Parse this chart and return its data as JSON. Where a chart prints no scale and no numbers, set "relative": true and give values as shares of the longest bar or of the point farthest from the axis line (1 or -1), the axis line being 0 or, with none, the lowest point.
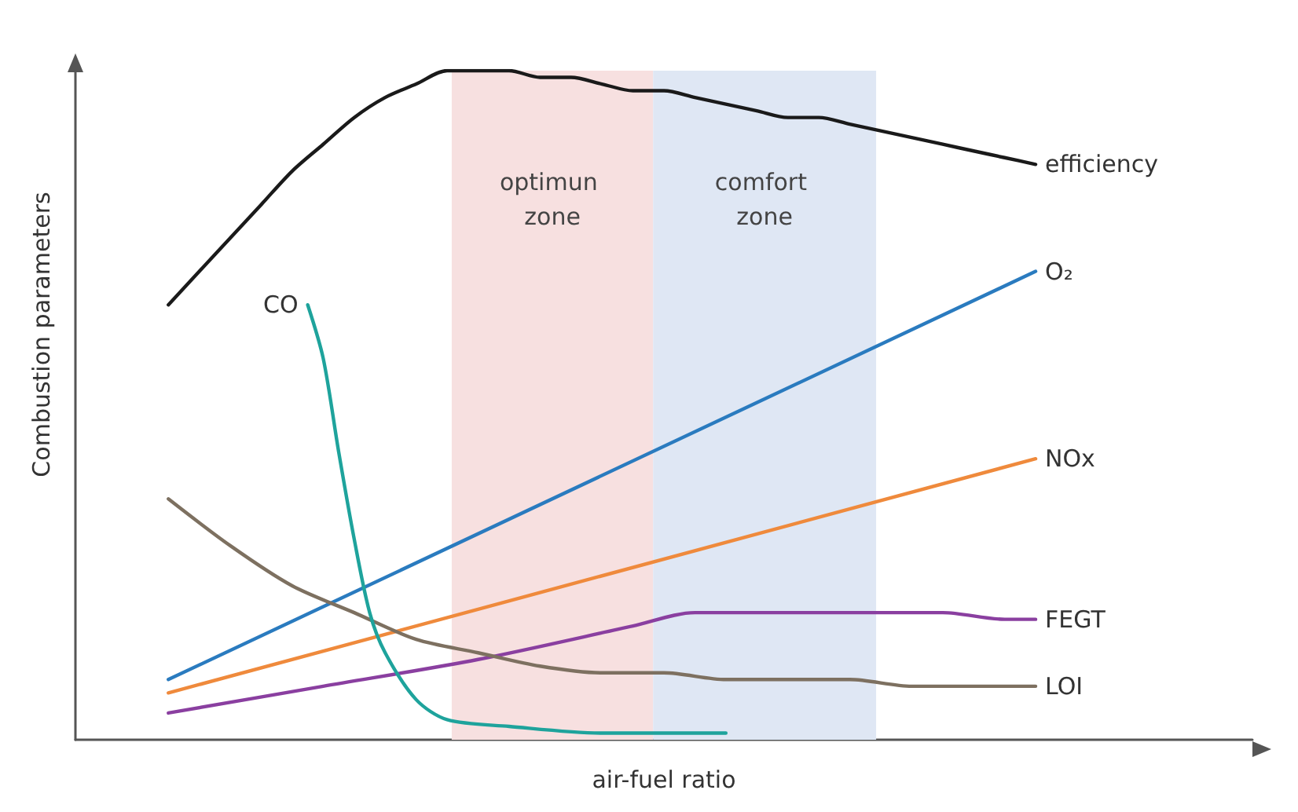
{
  "chart_data": {
    "type": "line",
    "relative": true,
    "xlabel": "air-fuel ratio",
    "ylabel": "Combustion parameters",
    "grid": false,
    "legend": false,
    "marker": "none",
    "line_style": "solid",
    "categories": [
      null,
      null,
      null,
      null,
      null,
      null,
      null,
      null,
      null,
      null,
      null,
      null,
      null,
      null,
      null,
      null,
      null,
      null,
      null,
      null,
      null,
      null,
      null,
      null,
      null,
      null,
      null,
      null,
      null,
      null,
      null,
      null,
      null,
      null,
      null,
      null,
      null,
      null,
      null,
      null,
      null,
      null,
      null,
      null,
      null,
      null,
      null,
      null,
      null,
      null,
      null,
      null,
      null,
      null,
      null,
      null,
      null,
      null,
      null,
      null,
      null,
      null,
      null,
      null,
      null,
      null,
      null,
      null,
      null,
      null,
      null,
      null,
      null,
      null,
      null,
      null,
      null
    ],
    "annotations": [
      "optimun zone",
      "comfort zone"
    ],
    "series": [
      {
        "name": "efficiency",
        "color": "#1a1a1a",
        "values": [
          null,
          null,
          null,
          null,
          null,
          null,
          0.65,
          null,
          0.7,
          null,
          0.75,
          null,
          0.8,
          null,
          0.85,
          null,
          0.89,
          null,
          0.93,
          null,
          0.96,
          null,
          0.98,
          null,
          1.0,
          null,
          1.0,
          null,
          1.0,
          null,
          0.99,
          null,
          0.99,
          null,
          0.98,
          null,
          0.97,
          null,
          0.97,
          null,
          0.96,
          null,
          0.95,
          null,
          0.94,
          null,
          0.93,
          null,
          0.93,
          null,
          0.92,
          null,
          0.91,
          null,
          0.9,
          null,
          0.89,
          null,
          0.88,
          null,
          0.87,
          null,
          0.86,
          null,
          null,
          null,
          null,
          null,
          null,
          null,
          null,
          null,
          null,
          null,
          null,
          null,
          null
        ]
      },
      {
        "name": "O₂",
        "color": "#2a7bbf",
        "values": [
          null,
          null,
          null,
          null,
          null,
          null,
          0.09,
          null,
          null,
          null,
          null,
          null,
          null,
          null,
          null,
          null,
          null,
          null,
          null,
          null,
          null,
          null,
          null,
          null,
          null,
          null,
          null,
          null,
          null,
          null,
          null,
          null,
          null,
          null,
          null,
          null,
          null,
          null,
          null,
          null,
          null,
          null,
          null,
          null,
          null,
          null,
          null,
          null,
          null,
          null,
          null,
          null,
          null,
          null,
          null,
          null,
          null,
          null,
          null,
          null,
          null,
          null,
          0.7,
          null,
          null,
          null,
          null,
          null,
          null,
          null,
          null,
          null,
          null,
          null,
          null,
          null,
          null
        ]
      },
      {
        "name": "NOx",
        "color": "#ef8a3c",
        "values": [
          null,
          null,
          null,
          null,
          null,
          null,
          0.07,
          null,
          null,
          null,
          null,
          null,
          null,
          null,
          null,
          null,
          null,
          null,
          null,
          null,
          null,
          null,
          null,
          null,
          null,
          null,
          null,
          null,
          null,
          null,
          null,
          null,
          null,
          null,
          null,
          null,
          null,
          null,
          null,
          null,
          null,
          null,
          null,
          null,
          null,
          null,
          null,
          null,
          null,
          null,
          null,
          null,
          null,
          null,
          null,
          null,
          null,
          null,
          null,
          null,
          null,
          null,
          0.42,
          null,
          null,
          null,
          null,
          null,
          null,
          null,
          null,
          null,
          null,
          null,
          null,
          null,
          null
        ]
      },
      {
        "name": "FEGT",
        "color": "#8a3fa0",
        "values": [
          null,
          null,
          null,
          null,
          null,
          null,
          0.04,
          null,
          null,
          null,
          null,
          null,
          null,
          null,
          null,
          null,
          0.08,
          null,
          null,
          null,
          null,
          null,
          null,
          null,
          null,
          null,
          0.12,
          null,
          null,
          null,
          null,
          null,
          null,
          null,
          null,
          null,
          0.17,
          null,
          null,
          null,
          0.19,
          null,
          null,
          null,
          0.19,
          null,
          null,
          null,
          0.19,
          null,
          null,
          null,
          0.19,
          null,
          null,
          null,
          0.19,
          null,
          null,
          null,
          0.18,
          null,
          0.18,
          null,
          null,
          null,
          null,
          null,
          null,
          null,
          null,
          null,
          null,
          null,
          null,
          null,
          null
        ]
      },
      {
        "name": "LOI",
        "color": "#7d7060",
        "values": [
          null,
          null,
          null,
          null,
          null,
          null,
          0.36,
          null,
          null,
          null,
          0.29,
          null,
          null,
          null,
          0.23,
          null,
          null,
          null,
          0.19,
          null,
          null,
          null,
          0.15,
          null,
          null,
          null,
          0.13,
          null,
          null,
          null,
          0.11,
          null,
          null,
          null,
          0.1,
          null,
          null,
          null,
          0.1,
          null,
          null,
          null,
          0.09,
          null,
          null,
          null,
          0.09,
          null,
          null,
          null,
          0.09,
          null,
          null,
          null,
          0.08,
          null,
          null,
          null,
          0.08,
          null,
          null,
          null,
          0.08,
          null,
          null,
          null,
          null,
          null,
          null,
          null,
          null,
          null,
          null,
          null,
          null,
          null,
          null
        ]
      },
      {
        "name": "CO",
        "color": "#1ea39c",
        "values": [
          null,
          null,
          null,
          null,
          null,
          null,
          null,
          null,
          null,
          null,
          null,
          null,
          null,
          null,
          null,
          0.65,
          0.57,
          0.43,
          0.3,
          0.19,
          0.13,
          null,
          0.06,
          null,
          0.03,
          null,
          null,
          null,
          0.02,
          null,
          null,
          null,
          null,
          null,
          0.01,
          null,
          null,
          null,
          null,
          null,
          null,
          null,
          0.01,
          null,
          null,
          null,
          null,
          null,
          null,
          null,
          null,
          null,
          null,
          null,
          null,
          null,
          null,
          null,
          null,
          null,
          null,
          null,
          null,
          null,
          null,
          null,
          null,
          null,
          null,
          null,
          null,
          null,
          null,
          null,
          null,
          null,
          null
        ]
      }
    ]
  }
}
